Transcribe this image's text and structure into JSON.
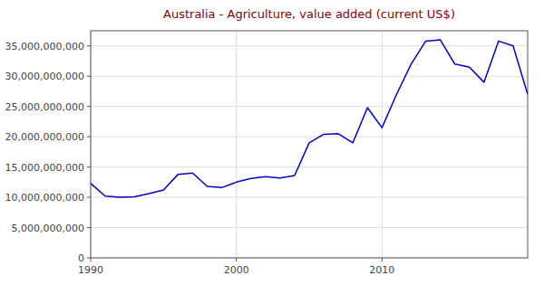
{
  "chart_data": {
    "type": "line",
    "title": "Australia - Agriculture, value added (current US$)",
    "x": [
      1990,
      1991,
      1992,
      1993,
      1994,
      1995,
      1996,
      1997,
      1998,
      1999,
      2000,
      2001,
      2002,
      2003,
      2004,
      2005,
      2006,
      2007,
      2008,
      2009,
      2010,
      2011,
      2012,
      2013,
      2014,
      2015,
      2016,
      2017,
      2018,
      2019,
      2020
    ],
    "values": [
      12300000000,
      10200000000,
      10000000000,
      10100000000,
      10600000000,
      11200000000,
      13800000000,
      14000000000,
      11800000000,
      11600000000,
      12500000000,
      13100000000,
      13400000000,
      13200000000,
      13600000000,
      19000000000,
      20400000000,
      20500000000,
      19000000000,
      24800000000,
      21500000000,
      27000000000,
      32000000000,
      35800000000,
      36000000000,
      32000000000,
      31500000000,
      29000000000,
      35800000000,
      35000000000,
      27000000000
    ],
    "color": "#0000CD",
    "xlim": [
      1990,
      2020
    ],
    "xticks": [
      1990,
      2000,
      2010
    ],
    "ylim": [
      0,
      37500000000
    ],
    "yticks": [
      0,
      {
        "value": 5000000000,
        "label": "5,000,000,000"
      },
      {
        "value": 10000000000,
        "label": "10,000,000,000"
      },
      {
        "value": 15000000000,
        "label": "15,000,000,000"
      },
      {
        "value": 20000000000,
        "label": "20,000,000,000"
      },
      {
        "value": 25000000000,
        "label": "25,000,000,000"
      },
      {
        "value": 30000000000,
        "label": "30,000,000,000"
      },
      {
        "value": 35000000000,
        "label": "35,000,000,000"
      }
    ],
    "grid": true
  }
}
